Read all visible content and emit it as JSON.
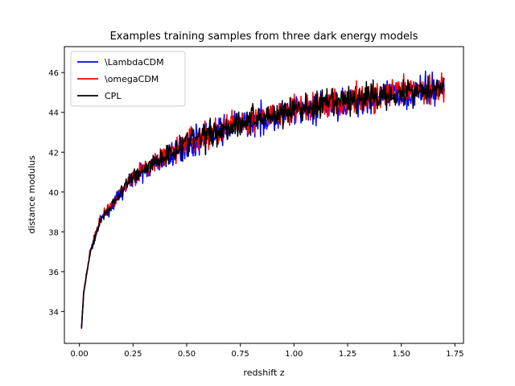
{
  "chart_data": {
    "type": "line",
    "title": "Examples training samples from three dark energy models",
    "xlabel": "redshift z",
    "ylabel": "distance modulus",
    "xlim": [
      -0.07,
      1.79
    ],
    "ylim": [
      32.4,
      47.3
    ],
    "xticks": [
      0.0,
      0.25,
      0.5,
      0.75,
      1.0,
      1.25,
      1.5,
      1.75
    ],
    "xtick_labels": [
      "0.00",
      "0.25",
      "0.50",
      "0.75",
      "1.00",
      "1.25",
      "1.50",
      "1.75"
    ],
    "yticks": [
      34,
      36,
      38,
      40,
      42,
      44,
      46
    ],
    "ytick_labels": [
      "34",
      "36",
      "38",
      "40",
      "42",
      "44",
      "46"
    ],
    "grid": false,
    "legend_position": "upper-left",
    "x_range_data": [
      0.01,
      1.7
    ],
    "noise_band_sigma_mag": 0.5,
    "series": [
      {
        "name": "\\LambdaCDM",
        "color": "#0000ff",
        "x": [
          0.01,
          0.02,
          0.05,
          0.1,
          0.25,
          0.5,
          0.75,
          1.0,
          1.25,
          1.5,
          1.7
        ],
        "y": [
          33.2,
          34.9,
          37.0,
          38.6,
          40.7,
          42.4,
          43.4,
          44.0,
          44.5,
          44.9,
          45.2
        ]
      },
      {
        "name": "\\omegaCDM",
        "color": "#ff0000",
        "x": [
          0.01,
          0.02,
          0.05,
          0.1,
          0.25,
          0.5,
          0.75,
          1.0,
          1.25,
          1.5,
          1.7
        ],
        "y": [
          33.3,
          35.0,
          37.0,
          38.7,
          40.8,
          42.5,
          43.5,
          44.1,
          44.6,
          45.0,
          45.3
        ]
      },
      {
        "name": "CPL",
        "color": "#000000",
        "x": [
          0.01,
          0.02,
          0.05,
          0.1,
          0.25,
          0.5,
          0.75,
          1.0,
          1.25,
          1.5,
          1.7
        ],
        "y": [
          33.2,
          34.9,
          37.0,
          38.6,
          40.8,
          42.5,
          43.5,
          44.1,
          44.6,
          45.0,
          45.3
        ]
      }
    ]
  }
}
